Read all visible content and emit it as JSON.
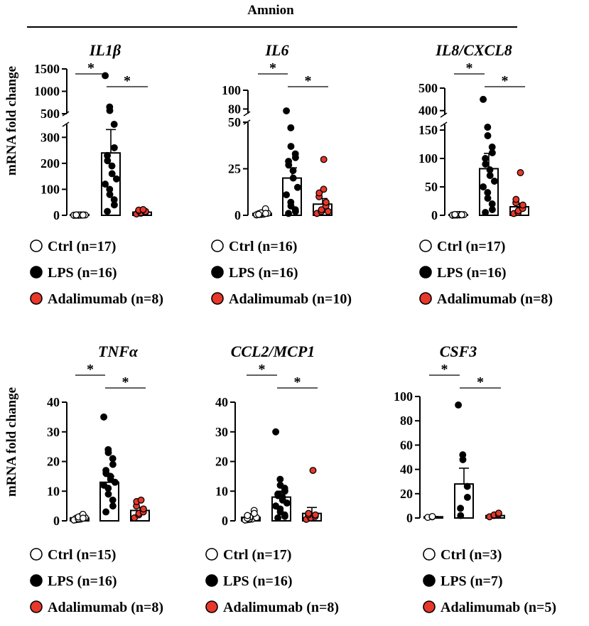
{
  "figure_title": "Amnion",
  "ylabel": "mRNA fold change",
  "sig_mark": "*",
  "colors": {
    "ctrl": "#ffffff",
    "lps": "#000000",
    "adalimumab": "#e8382b",
    "stroke": "#000000"
  },
  "chart_data": [
    {
      "type": "bar",
      "title": "IL1β",
      "ylabel": "mRNA fold change",
      "categories": [
        "Ctrl",
        "LPS",
        "Adalimumab"
      ],
      "means": [
        1,
        240,
        12
      ],
      "sem": [
        0.3,
        90,
        4
      ],
      "ylim": [
        0,
        1500
      ],
      "axis_break": {
        "lower": [
          0,
          350
        ],
        "upper": [
          500,
          1500
        ]
      },
      "ticks_lower": [
        0,
        100,
        200,
        300
      ],
      "ticks_upper": [
        500,
        1000,
        1500
      ],
      "points": {
        "Ctrl": [
          0.2,
          0.5,
          0.8,
          1,
          1.2,
          0.4,
          0.9,
          1.5,
          0.6,
          1.1,
          0.3,
          0.7,
          1.3,
          0.9,
          1,
          0.5,
          1.4
        ],
        "LPS": [
          1350,
          650,
          570,
          350,
          260,
          230,
          210,
          190,
          160,
          140,
          120,
          100,
          80,
          60,
          40,
          15
        ],
        "Adalimumab": [
          5,
          8,
          10,
          12,
          15,
          18,
          20,
          22
        ]
      },
      "legend": [
        "Ctrl (n=17)",
        "LPS (n=16)",
        "Adalimumab (n=8)"
      ],
      "significance": [
        "*",
        "*"
      ]
    },
    {
      "type": "bar",
      "title": "IL6",
      "ylabel": "",
      "categories": [
        "Ctrl",
        "LPS",
        "Adalimumab"
      ],
      "means": [
        1,
        20,
        6
      ],
      "sem": [
        0.3,
        5.5,
        3
      ],
      "ylim": [
        0,
        100
      ],
      "axis_break": {
        "lower": [
          0,
          50
        ],
        "upper": [
          75,
          100
        ]
      },
      "ticks_lower": [
        0,
        25,
        50
      ],
      "ticks_upper": [
        80,
        100
      ],
      "points": {
        "Ctrl": [
          0.2,
          0.5,
          0.8,
          1,
          1.2,
          0.4,
          0.9,
          1.5,
          0.6,
          1.1,
          0.3,
          0.7,
          1.3,
          3.5,
          1,
          0.5
        ],
        "LPS": [
          78,
          47,
          37,
          33,
          31,
          29,
          27,
          24,
          20,
          15,
          11,
          7,
          5,
          3,
          2,
          1
        ],
        "Adalimumab": [
          1,
          2,
          3,
          5,
          7,
          10,
          12,
          14,
          30,
          2
        ]
      },
      "legend": [
        "Ctrl (n=16)",
        "LPS (n=16)",
        "Adalimumab (n=10)"
      ],
      "significance": [
        "*",
        "*"
      ]
    },
    {
      "type": "bar",
      "title": "IL8/CXCL8",
      "ylabel": "",
      "categories": [
        "Ctrl",
        "LPS",
        "Adalimumab"
      ],
      "means": [
        1,
        82,
        15
      ],
      "sem": [
        0.3,
        27,
        6
      ],
      "ylim": [
        0,
        500
      ],
      "axis_break": {
        "lower": [
          0,
          160
        ],
        "upper": [
          380,
          500
        ]
      },
      "ticks_lower": [
        0,
        50,
        100,
        150
      ],
      "ticks_upper": [
        400,
        500
      ],
      "points": {
        "Ctrl": [
          0.2,
          0.5,
          0.8,
          1,
          1.2,
          0.4,
          0.9,
          1.5,
          0.6,
          1.1,
          0.3,
          0.7,
          1.3,
          0.9,
          1,
          0.5,
          1.4
        ],
        "LPS": [
          450,
          155,
          140,
          120,
          110,
          100,
          90,
          80,
          70,
          60,
          50,
          40,
          30,
          20,
          10,
          5
        ],
        "Adalimumab": [
          3,
          5,
          8,
          12,
          18,
          22,
          28,
          75
        ]
      },
      "legend": [
        "Ctrl (n=17)",
        "LPS (n=16)",
        "Adalimumab (n=8)"
      ],
      "significance": [
        "*",
        "*"
      ]
    },
    {
      "type": "bar",
      "title": "TNFα",
      "ylabel": "mRNA fold change",
      "categories": [
        "Ctrl",
        "LPS",
        "Adalimumab"
      ],
      "means": [
        1,
        13,
        3.5
      ],
      "sem": [
        0.2,
        2,
        1
      ],
      "ylim": [
        0,
        40
      ],
      "ticks": [
        0,
        10,
        20,
        30,
        40
      ],
      "points": {
        "Ctrl": [
          0.3,
          0.5,
          0.8,
          1,
          1.2,
          0.4,
          0.9,
          1.5,
          0.6,
          1.1,
          0.3,
          0.7,
          1.3,
          2.2,
          0.9
        ],
        "LPS": [
          35,
          24,
          23,
          21,
          19,
          17,
          16,
          15,
          14,
          13,
          12,
          11,
          9,
          7,
          5,
          3
        ],
        "Adalimumab": [
          1,
          2,
          2.5,
          3,
          4,
          5,
          6.5,
          7
        ]
      },
      "legend": [
        "Ctrl (n=15)",
        "LPS (n=16)",
        "Adalimumab (n=8)"
      ],
      "significance": [
        "*",
        "*"
      ]
    },
    {
      "type": "bar",
      "title": "CCL2/MCP1",
      "ylabel": "",
      "categories": [
        "Ctrl",
        "LPS",
        "Adalimumab"
      ],
      "means": [
        1.2,
        8,
        2.5
      ],
      "sem": [
        0.3,
        2,
        2
      ],
      "ylim": [
        0,
        40
      ],
      "ticks": [
        0,
        10,
        20,
        30,
        40
      ],
      "points": {
        "Ctrl": [
          0.3,
          0.5,
          0.8,
          1,
          1.2,
          0.4,
          0.9,
          1.5,
          0.6,
          1.1,
          0.3,
          0.7,
          1.3,
          3.5,
          2.5,
          0.9,
          1.8
        ],
        "LPS": [
          30,
          14,
          12,
          11,
          10,
          9,
          8.5,
          8,
          7,
          6,
          5,
          4,
          3,
          2,
          1.5,
          1
        ],
        "Adalimumab": [
          0.5,
          1,
          1,
          1.5,
          2,
          2,
          2.5,
          17
        ]
      },
      "legend": [
        "Ctrl (n=17)",
        "LPS (n=16)",
        "Adalimumab (n=8)"
      ],
      "significance": [
        "*",
        "*"
      ]
    },
    {
      "type": "bar",
      "title": "CSF3",
      "ylabel": "",
      "categories": [
        "Ctrl",
        "LPS",
        "Adalimumab"
      ],
      "means": [
        1,
        28,
        2
      ],
      "sem": [
        0.2,
        13,
        0.5
      ],
      "ylim": [
        0,
        100
      ],
      "ticks": [
        0,
        20,
        40,
        60,
        80,
        100
      ],
      "points": {
        "Ctrl": [
          0.5,
          1,
          1.2
        ],
        "LPS": [
          93,
          52,
          48,
          26,
          17,
          8,
          2
        ],
        "Adalimumab": [
          1,
          2,
          2.5,
          3,
          4
        ]
      },
      "legend": [
        "Ctrl (n=3)",
        "LPS (n=7)",
        "Adalimumab (n=5)"
      ],
      "significance": [
        "*",
        "*"
      ]
    }
  ]
}
